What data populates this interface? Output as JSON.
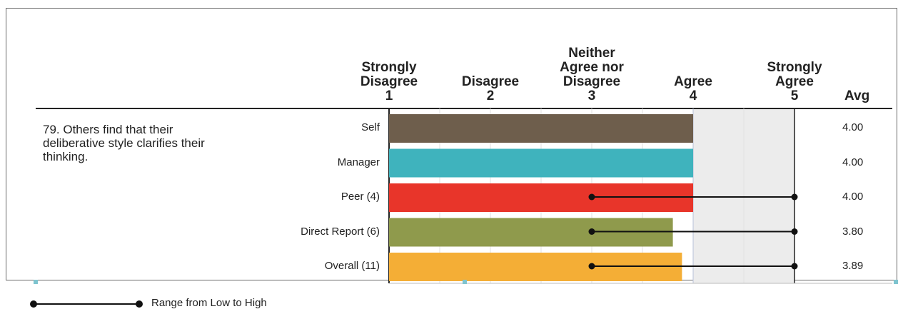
{
  "chart_data": {
    "type": "bar",
    "orientation": "horizontal",
    "scale_labels": [
      {
        "text": "Strongly\nDisagree\n1",
        "value": 1
      },
      {
        "text": "Disagree\n2",
        "value": 2
      },
      {
        "text": "Neither\nAgree nor\nDisagree\n3",
        "value": 3
      },
      {
        "text": "Agree\n4",
        "value": 4
      },
      {
        "text": "Strongly\nAgree\n5",
        "value": 5
      }
    ],
    "avg_header": "Avg",
    "question": "79. Others find that their deliberative style clarifies their thinking.",
    "xlim": [
      1,
      5
    ],
    "categories": [
      "Self",
      "Manager",
      "Peer (4)",
      "Direct Report (6)",
      "Overall (11)"
    ],
    "values": [
      4.0,
      4.0,
      4.0,
      3.8,
      3.89
    ],
    "avg_labels": [
      "4.00",
      "4.00",
      "4.00",
      "3.80",
      "3.89"
    ],
    "colors": [
      "#6e5e4c",
      "#3fb3bd",
      "#e8352a",
      "#8f9a4c",
      "#f4ae36"
    ],
    "ranges": [
      null,
      null,
      [
        3,
        5
      ],
      [
        3,
        5
      ],
      [
        3,
        5
      ]
    ],
    "legend": {
      "label": "Range from Low to High"
    }
  }
}
